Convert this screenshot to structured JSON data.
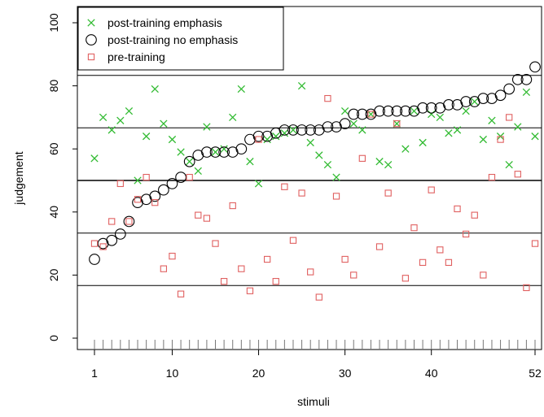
{
  "chart_data": {
    "type": "scatter",
    "xlabel": "stimuli",
    "ylabel": "judgement",
    "xlim": [
      1,
      52
    ],
    "ylim": [
      0,
      100
    ],
    "x_ticks": [
      1,
      10,
      20,
      30,
      40,
      52
    ],
    "x_tick_labels": [
      "1",
      "10",
      "20",
      "30",
      "40",
      "52"
    ],
    "y_ticks": [
      0,
      20,
      40,
      60,
      80,
      100
    ],
    "y_tick_labels": [
      "0",
      "20",
      "40",
      "60",
      "80",
      "100"
    ],
    "reference_lines": [
      16.7,
      33.3,
      50,
      66.7,
      83.3
    ],
    "legend_position": "top-left",
    "series": [
      {
        "name": "post-training emphasis",
        "marker": "x",
        "color": "#33bb33",
        "x": [
          1,
          2,
          3,
          4,
          5,
          6,
          7,
          8,
          9,
          10,
          11,
          12,
          13,
          14,
          15,
          16,
          17,
          18,
          19,
          20,
          21,
          22,
          23,
          24,
          25,
          26,
          27,
          28,
          29,
          30,
          31,
          32,
          33,
          34,
          35,
          36,
          37,
          38,
          39,
          40,
          41,
          42,
          43,
          44,
          45,
          46,
          47,
          48,
          49,
          50,
          51,
          52
        ],
        "y": [
          57,
          70,
          66,
          69,
          72,
          50,
          64,
          79,
          68,
          63,
          59,
          56,
          53,
          67,
          59,
          60,
          70,
          79,
          56,
          49,
          63,
          64,
          65,
          66,
          80,
          62,
          58,
          55,
          51,
          72,
          68,
          66,
          71,
          56,
          55,
          68,
          60,
          72,
          62,
          71,
          70,
          65,
          66,
          72,
          75,
          63,
          69,
          64,
          55,
          67,
          78,
          64
        ]
      },
      {
        "name": "post-training no emphasis",
        "marker": "circle",
        "color": "#000000",
        "x": [
          1,
          2,
          3,
          4,
          5,
          6,
          7,
          8,
          9,
          10,
          11,
          12,
          13,
          14,
          15,
          16,
          17,
          18,
          19,
          20,
          21,
          22,
          23,
          24,
          25,
          26,
          27,
          28,
          29,
          30,
          31,
          32,
          33,
          34,
          35,
          36,
          37,
          38,
          39,
          40,
          41,
          42,
          43,
          44,
          45,
          46,
          47,
          48,
          49,
          50,
          51,
          52
        ],
        "y": [
          25,
          30,
          31,
          33,
          37,
          43,
          44,
          45,
          47,
          49,
          51,
          56,
          58,
          59,
          59,
          59,
          59,
          60,
          63,
          64,
          64,
          65,
          66,
          66,
          66,
          66,
          66,
          67,
          67,
          68,
          71,
          71,
          71,
          72,
          72,
          72,
          72,
          72,
          73,
          73,
          73,
          74,
          74,
          75,
          75,
          76,
          76,
          77,
          79,
          82,
          82,
          86
        ]
      },
      {
        "name": "pre-training",
        "marker": "square",
        "color": "#e06060",
        "x": [
          1,
          2,
          3,
          4,
          5,
          6,
          7,
          8,
          9,
          10,
          11,
          12,
          13,
          14,
          15,
          16,
          17,
          18,
          19,
          20,
          21,
          22,
          23,
          24,
          25,
          26,
          27,
          28,
          29,
          30,
          31,
          32,
          33,
          34,
          35,
          36,
          37,
          38,
          39,
          40,
          41,
          42,
          43,
          44,
          45,
          46,
          47,
          48,
          49,
          50,
          51,
          52
        ],
        "y": [
          30,
          29,
          37,
          49,
          37,
          44,
          51,
          43,
          22,
          26,
          14,
          51,
          39,
          38,
          30,
          18,
          42,
          22,
          15,
          63,
          25,
          18,
          48,
          31,
          46,
          21,
          13,
          76,
          45,
          25,
          20,
          57,
          71,
          29,
          46,
          68,
          19,
          35,
          24,
          47,
          28,
          24,
          41,
          33,
          39,
          20,
          51,
          63,
          70,
          52,
          16,
          30
        ]
      }
    ]
  }
}
